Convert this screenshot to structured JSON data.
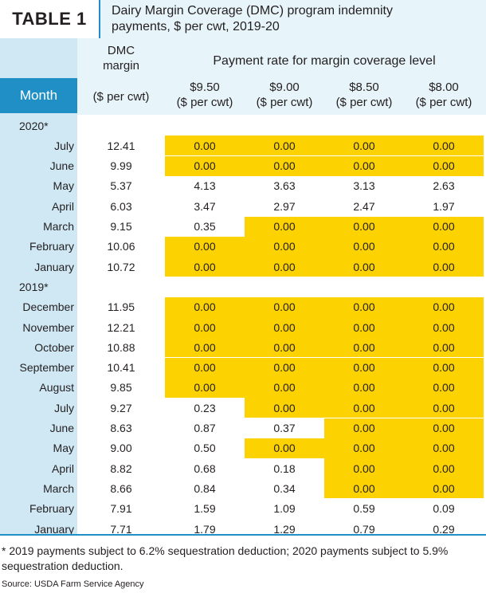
{
  "header": {
    "tag": "TABLE 1",
    "title_line1": "Dairy Margin Coverage (DMC) program indemnity",
    "title_line2": "payments, $ per cwt, 2019-20"
  },
  "columns": {
    "dmc_line1": "DMC",
    "dmc_line2": "margin",
    "dmc_unit": "($ per cwt)",
    "payment_heading": "Payment rate for margin coverage level",
    "month": "Month",
    "levels": [
      {
        "value": "$9.50",
        "unit": "($ per cwt)"
      },
      {
        "value": "$9.00",
        "unit": "($ per cwt)"
      },
      {
        "value": "$8.50",
        "unit": "($ per cwt)"
      },
      {
        "value": "$8.00",
        "unit": "($ per cwt)"
      }
    ]
  },
  "highlight_color": "#fcd200",
  "accent_color": "#1f8fc6",
  "rows": [
    {
      "type": "year",
      "label": "2020*"
    },
    {
      "type": "data",
      "month": "July",
      "margin": "12.41",
      "rates": [
        "0.00",
        "0.00",
        "0.00",
        "0.00"
      ],
      "highlighted": [
        true,
        true,
        true,
        true
      ]
    },
    {
      "type": "data",
      "month": "June",
      "margin": "9.99",
      "rates": [
        "0.00",
        "0.00",
        "0.00",
        "0.00"
      ],
      "highlighted": [
        true,
        true,
        true,
        true
      ]
    },
    {
      "type": "data",
      "month": "May",
      "margin": "5.37",
      "rates": [
        "4.13",
        "3.63",
        "3.13",
        "2.63"
      ],
      "highlighted": [
        false,
        false,
        false,
        false
      ]
    },
    {
      "type": "data",
      "month": "April",
      "margin": "6.03",
      "rates": [
        "3.47",
        "2.97",
        "2.47",
        "1.97"
      ],
      "highlighted": [
        false,
        false,
        false,
        false
      ]
    },
    {
      "type": "data",
      "month": "March",
      "margin": "9.15",
      "rates": [
        "0.35",
        "0.00",
        "0.00",
        "0.00"
      ],
      "highlighted": [
        false,
        true,
        true,
        true
      ]
    },
    {
      "type": "data",
      "month": "February",
      "margin": "10.06",
      "rates": [
        "0.00",
        "0.00",
        "0.00",
        "0.00"
      ],
      "highlighted": [
        true,
        true,
        true,
        true
      ]
    },
    {
      "type": "data",
      "month": "January",
      "margin": "10.72",
      "rates": [
        "0.00",
        "0.00",
        "0.00",
        "0.00"
      ],
      "highlighted": [
        true,
        true,
        true,
        true
      ]
    },
    {
      "type": "year",
      "label": "2019*"
    },
    {
      "type": "data",
      "month": "December",
      "margin": "11.95",
      "rates": [
        "0.00",
        "0.00",
        "0.00",
        "0.00"
      ],
      "highlighted": [
        true,
        true,
        true,
        true
      ]
    },
    {
      "type": "data",
      "month": "November",
      "margin": "12.21",
      "rates": [
        "0.00",
        "0.00",
        "0.00",
        "0.00"
      ],
      "highlighted": [
        true,
        true,
        true,
        true
      ]
    },
    {
      "type": "data",
      "month": "October",
      "margin": "10.88",
      "rates": [
        "0.00",
        "0.00",
        "0.00",
        "0.00"
      ],
      "highlighted": [
        true,
        true,
        true,
        true
      ]
    },
    {
      "type": "data",
      "month": "September",
      "margin": "10.41",
      "rates": [
        "0.00",
        "0.00",
        "0.00",
        "0.00"
      ],
      "highlighted": [
        true,
        true,
        true,
        true
      ]
    },
    {
      "type": "data",
      "month": "August",
      "margin": "9.85",
      "rates": [
        "0.00",
        "0.00",
        "0.00",
        "0.00"
      ],
      "highlighted": [
        true,
        true,
        true,
        true
      ]
    },
    {
      "type": "data",
      "month": "July",
      "margin": "9.27",
      "rates": [
        "0.23",
        "0.00",
        "0.00",
        "0.00"
      ],
      "highlighted": [
        false,
        true,
        true,
        true
      ]
    },
    {
      "type": "data",
      "month": "June",
      "margin": "8.63",
      "rates": [
        "0.87",
        "0.37",
        "0.00",
        "0.00"
      ],
      "highlighted": [
        false,
        false,
        true,
        true
      ]
    },
    {
      "type": "data",
      "month": "May",
      "margin": "9.00",
      "rates": [
        "0.50",
        "0.00",
        "0.00",
        "0.00"
      ],
      "highlighted": [
        false,
        true,
        true,
        true
      ]
    },
    {
      "type": "data",
      "month": "April",
      "margin": "8.82",
      "rates": [
        "0.68",
        "0.18",
        "0.00",
        "0.00"
      ],
      "highlighted": [
        false,
        false,
        true,
        true
      ]
    },
    {
      "type": "data",
      "month": "March",
      "margin": "8.66",
      "rates": [
        "0.84",
        "0.34",
        "0.00",
        "0.00"
      ],
      "highlighted": [
        false,
        false,
        true,
        true
      ]
    },
    {
      "type": "data",
      "month": "February",
      "margin": "7.91",
      "rates": [
        "1.59",
        "1.09",
        "0.59",
        "0.09"
      ],
      "highlighted": [
        false,
        false,
        false,
        false
      ]
    },
    {
      "type": "data",
      "month": "January",
      "margin": "7.71",
      "rates": [
        "1.79",
        "1.29",
        "0.79",
        "0.29"
      ],
      "highlighted": [
        false,
        false,
        false,
        false
      ]
    }
  ],
  "footnote": "* 2019 payments subject to 6.2% sequestration deduction; 2020 payments subject to 5.9% sequestration deduction.",
  "source": "Source: USDA Farm Service Agency"
}
